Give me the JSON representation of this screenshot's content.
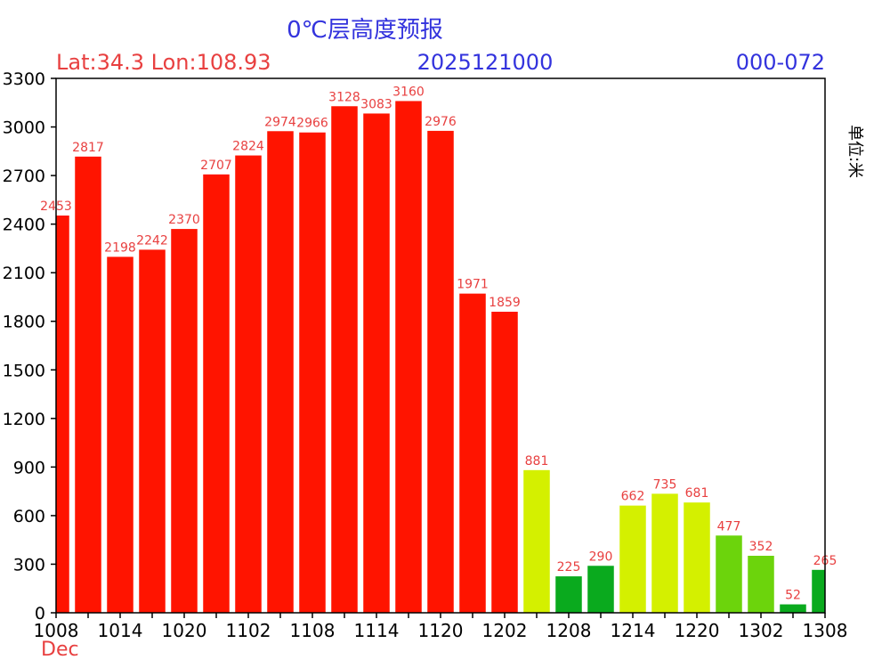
{
  "header": {
    "title": "0℃层高度预报",
    "location": "Lat:34.3 Lon:108.93",
    "init_time": "2025121000",
    "forecast_range": "000-072",
    "unit_label": "单位:米",
    "month_label": "Dec"
  },
  "colors": {
    "title": "#3333dd",
    "red_text": "#e84040",
    "blue_text": "#3333dd",
    "bar_red": "#ff1400",
    "bar_yellow": "#d4f000",
    "bar_lightgreen": "#6cd40c",
    "bar_green": "#0aaa1e"
  },
  "chart_data": {
    "type": "bar",
    "title": "0℃层高度预报",
    "ylabel": "单位:米",
    "ylim": [
      0,
      3300
    ],
    "yticks": [
      0,
      300,
      600,
      900,
      1200,
      1500,
      1800,
      2100,
      2400,
      2700,
      3000,
      3300
    ],
    "x_tick_labels": [
      "1008",
      "1014",
      "1020",
      "1102",
      "1108",
      "1114",
      "1120",
      "1202",
      "1208",
      "1214",
      "1220",
      "1302",
      "1308"
    ],
    "values": [
      2453,
      2817,
      2198,
      2242,
      2370,
      2707,
      2824,
      2974,
      2966,
      3128,
      3083,
      3160,
      2976,
      1971,
      1859,
      881,
      225,
      290,
      662,
      735,
      681,
      477,
      352,
      52,
      265
    ],
    "bar_color_keys": [
      "bar_red",
      "bar_red",
      "bar_red",
      "bar_red",
      "bar_red",
      "bar_red",
      "bar_red",
      "bar_red",
      "bar_red",
      "bar_red",
      "bar_red",
      "bar_red",
      "bar_red",
      "bar_red",
      "bar_red",
      "bar_yellow",
      "bar_green",
      "bar_green",
      "bar_yellow",
      "bar_yellow",
      "bar_yellow",
      "bar_lightgreen",
      "bar_lightgreen",
      "bar_green",
      "bar_green"
    ],
    "grid": false
  }
}
